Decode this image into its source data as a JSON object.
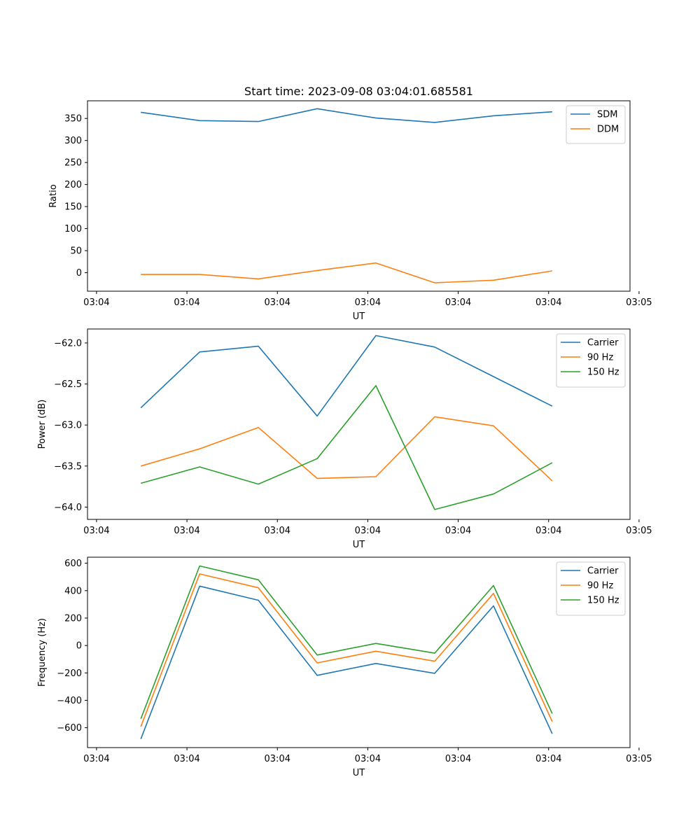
{
  "figure": {
    "title": "Start time: 2023-09-08 03:04:01.685581"
  },
  "chart_data": [
    {
      "type": "line",
      "id": "ratio",
      "title": "Start time: 2023-09-08 03:04:01.685581",
      "xlabel": "UT",
      "ylabel": "Ratio",
      "xlim": [
        -0.35,
        5.65
      ],
      "ylim": [
        -42,
        390
      ],
      "yticks": [
        0,
        50,
        100,
        150,
        200,
        250,
        300,
        350
      ],
      "xticks": [
        -0.25,
        0.75,
        1.75,
        2.75,
        3.75,
        4.75,
        5.75
      ],
      "xtick_labels": [
        "03:04",
        "03:04",
        "03:04",
        "03:04",
        "03:04",
        "03:04",
        "03:05"
      ],
      "x": [
        0.24,
        0.89,
        1.54,
        2.19,
        2.84,
        3.49,
        4.14,
        4.79
      ],
      "legend": "top-right",
      "series": [
        {
          "name": "SDM",
          "color": "#1f77b4",
          "values": [
            364,
            345,
            343,
            372,
            351,
            341,
            356,
            365
          ]
        },
        {
          "name": "DDM",
          "color": "#ff7f0e",
          "values": [
            -4,
            -4,
            -14,
            5,
            22,
            -23,
            -17,
            4
          ]
        }
      ]
    },
    {
      "type": "line",
      "id": "power",
      "title": "",
      "xlabel": "UT",
      "ylabel": "Power (dB)",
      "xlim": [
        -0.35,
        5.65
      ],
      "ylim": [
        -64.15,
        -61.83
      ],
      "yticks": [
        -64.0,
        -63.5,
        -63.0,
        -62.5,
        -62.0
      ],
      "ytick_labels": [
        "−64.0",
        "−63.5",
        "−63.0",
        "−62.5",
        "−62.0"
      ],
      "xticks": [
        -0.25,
        0.75,
        1.75,
        2.75,
        3.75,
        4.75,
        5.75
      ],
      "xtick_labels": [
        "03:04",
        "03:04",
        "03:04",
        "03:04",
        "03:04",
        "03:04",
        "03:05"
      ],
      "x": [
        0.24,
        0.89,
        1.54,
        2.19,
        2.84,
        3.49,
        4.14,
        4.79
      ],
      "legend": "top-right",
      "series": [
        {
          "name": "Carrier",
          "color": "#1f77b4",
          "values": [
            -62.79,
            -62.11,
            -62.04,
            -62.89,
            -61.91,
            -62.05,
            -62.41,
            -62.77
          ]
        },
        {
          "name": "90 Hz",
          "color": "#ff7f0e",
          "values": [
            -63.5,
            -63.29,
            -63.03,
            -63.65,
            -63.63,
            -62.9,
            -63.01,
            -63.68
          ]
        },
        {
          "name": "150 Hz",
          "color": "#2ca02c",
          "values": [
            -63.71,
            -63.51,
            -63.72,
            -63.41,
            -62.52,
            -64.03,
            -63.84,
            -63.46
          ]
        }
      ]
    },
    {
      "type": "line",
      "id": "frequency",
      "title": "",
      "xlabel": "UT",
      "ylabel": "Frequency (Hz)",
      "xlim": [
        -0.35,
        5.65
      ],
      "ylim": [
        -745,
        644
      ],
      "yticks": [
        -600,
        -400,
        -200,
        0,
        200,
        400,
        600
      ],
      "ytick_labels": [
        "−600",
        "−400",
        "−200",
        "0",
        "200",
        "400",
        "600"
      ],
      "xticks": [
        -0.25,
        0.75,
        1.75,
        2.75,
        3.75,
        4.75,
        5.75
      ],
      "xtick_labels": [
        "03:04",
        "03:04",
        "03:04",
        "03:04",
        "03:04",
        "03:04",
        "03:05"
      ],
      "x": [
        0.24,
        0.89,
        1.54,
        2.19,
        2.84,
        3.49,
        4.14,
        4.79
      ],
      "legend": "top-right",
      "series": [
        {
          "name": "Carrier",
          "color": "#1f77b4",
          "values": [
            -682,
            433,
            330,
            -218,
            -131,
            -203,
            289,
            -644
          ]
        },
        {
          "name": "90 Hz",
          "color": "#ff7f0e",
          "values": [
            -592,
            522,
            421,
            -127,
            -42,
            -115,
            380,
            -555
          ]
        },
        {
          "name": "150 Hz",
          "color": "#2ca02c",
          "values": [
            -535,
            580,
            479,
            -70,
            15,
            -56,
            437,
            -497
          ]
        }
      ]
    }
  ]
}
